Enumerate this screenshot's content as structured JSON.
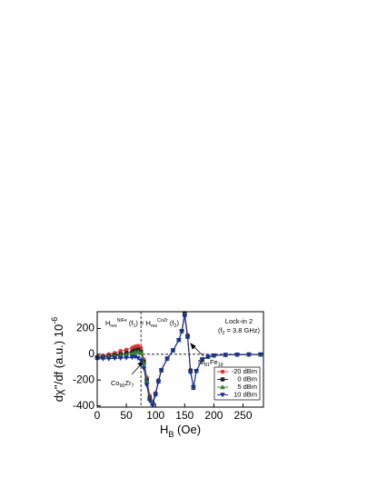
{
  "chart_data": {
    "type": "line",
    "x_label": [
      "H",
      "B",
      " (Oe)"
    ],
    "y_label": [
      "dχ''/df (a.u.) 10",
      "-6"
    ],
    "x": [
      0,
      10,
      20,
      30,
      40,
      50,
      60,
      65,
      70,
      75,
      80,
      85,
      90,
      95,
      100,
      105,
      110,
      120,
      130,
      140,
      145,
      150,
      155,
      160,
      165,
      170,
      180,
      190,
      200,
      220,
      240,
      260,
      280
    ],
    "series": [
      {
        "name": "-20 dBm",
        "color": "#e8302a",
        "marker": "circle",
        "values": [
          -20,
          -10,
          0,
          10,
          25,
          35,
          50,
          60,
          65,
          50,
          -40,
          -180,
          -320,
          -370,
          -300,
          -200,
          -120,
          -30,
          30,
          110,
          180,
          320,
          150,
          -120,
          -260,
          -130,
          -40,
          -20,
          -10,
          -5,
          -3,
          -2,
          -2
        ]
      },
      {
        "name": "0 dBm",
        "color": "#222222",
        "marker": "square",
        "values": [
          -25,
          -20,
          -15,
          -8,
          0,
          10,
          20,
          30,
          35,
          20,
          -60,
          -200,
          -340,
          -380,
          -310,
          -210,
          -125,
          -35,
          30,
          110,
          180,
          310,
          140,
          -130,
          -260,
          -130,
          -40,
          -20,
          -10,
          -5,
          -3,
          -2,
          -2
        ]
      },
      {
        "name": "5 dBm",
        "color": "#2e8b2e",
        "marker": "triangle-up",
        "values": [
          -28,
          -25,
          -20,
          -15,
          -10,
          -5,
          5,
          15,
          20,
          10,
          -70,
          -210,
          -345,
          -385,
          -310,
          -210,
          -125,
          -35,
          30,
          110,
          180,
          305,
          135,
          -135,
          -255,
          -130,
          -40,
          -20,
          -10,
          -5,
          -3,
          -2,
          -2
        ]
      },
      {
        "name": "10 dBm",
        "color": "#1a2aa8",
        "marker": "triangle-down",
        "values": [
          -35,
          -35,
          -35,
          -32,
          -30,
          -28,
          -25,
          -20,
          -30,
          -50,
          -110,
          -240,
          -360,
          -395,
          -315,
          -215,
          -125,
          -35,
          30,
          110,
          175,
          295,
          130,
          -140,
          -255,
          -130,
          -40,
          -20,
          -10,
          -5,
          -3,
          -2,
          -2
        ]
      }
    ],
    "xlim": [
      0,
      285
    ],
    "ylim": [
      -410,
      330
    ],
    "xticks": [
      0,
      50,
      100,
      150,
      200,
      250
    ],
    "yticks": [
      -400,
      -200,
      0,
      200
    ],
    "vline": 75,
    "hline": 0,
    "annotations": [
      {
        "parts": [
          "H",
          "res",
          "NiFe",
          " (f",
          "1",
          ") = H",
          "res",
          "CoZr",
          " (f",
          "2",
          ")"
        ]
      },
      {
        "parts": [
          "Lock-in 2"
        ]
      },
      {
        "parts": [
          "(f",
          "2",
          " = 3.8 GHz)"
        ]
      },
      {
        "parts": [
          "Ni",
          "81",
          "Fe",
          "19"
        ]
      },
      {
        "parts": [
          "Co",
          "90",
          "Zr",
          "7"
        ]
      }
    ]
  }
}
